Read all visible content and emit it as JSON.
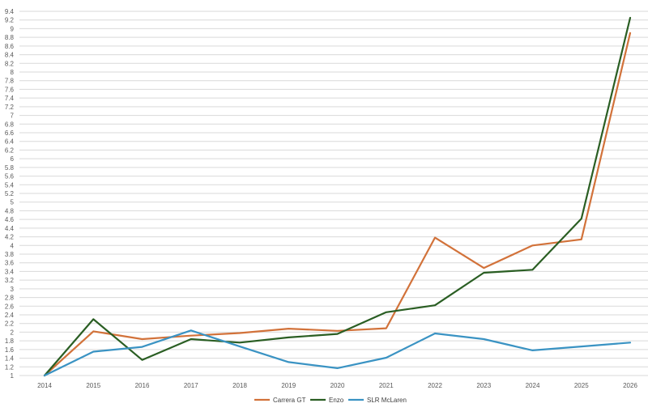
{
  "chart_data": {
    "type": "line",
    "categories": [
      "2014",
      "2015",
      "2016",
      "2017",
      "2018",
      "2019",
      "2020",
      "2021",
      "2022",
      "2023",
      "2024",
      "2025",
      "2026"
    ],
    "series": [
      {
        "name": "Carrera GT",
        "color": "#d2723a",
        "values": [
          1.0,
          2.02,
          1.84,
          1.92,
          1.98,
          2.08,
          2.03,
          2.09,
          4.18,
          3.48,
          4.0,
          4.14,
          8.9
        ]
      },
      {
        "name": "Enzo",
        "color": "#2a5e23",
        "values": [
          1.0,
          2.3,
          1.36,
          1.84,
          1.76,
          1.88,
          1.96,
          2.46,
          2.62,
          3.37,
          3.44,
          4.62,
          9.25
        ]
      },
      {
        "name": "SLR McLaren",
        "color": "#3a93c3",
        "values": [
          1.0,
          1.55,
          1.66,
          2.04,
          1.67,
          1.31,
          1.17,
          1.41,
          1.97,
          1.84,
          1.58,
          1.67,
          1.76
        ]
      }
    ],
    "y_ticks": [
      "1",
      "1.2",
      "1.4",
      "1.6",
      "1.8",
      "2",
      "2.2",
      "2.4",
      "2.6",
      "2.8",
      "3",
      "3.2",
      "3.4",
      "3.6",
      "3.8",
      "4",
      "4.2",
      "4.4",
      "4.6",
      "4.8",
      "5",
      "5.2",
      "5.4",
      "5.6",
      "5.8",
      "6",
      "6.2",
      "6.4",
      "6.6",
      "6.8",
      "7",
      "7.2",
      "7.4",
      "7.6",
      "7.8",
      "8",
      "8.2",
      "8.4",
      "8.6",
      "8.8",
      "9",
      "9.2",
      "9.4"
    ],
    "ylim": [
      1,
      9.4
    ],
    "grid": true,
    "legend_position": "bottom",
    "title": "",
    "xlabel": "",
    "ylabel": ""
  }
}
